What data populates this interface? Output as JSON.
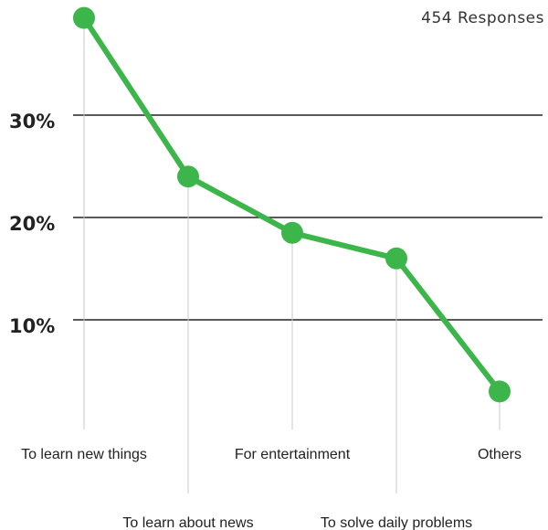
{
  "header": {
    "responses": "454 Responses"
  },
  "chart_data": {
    "type": "line",
    "categories": [
      "To learn new things",
      "To learn about news",
      "For entertainment",
      "To solve daily problems",
      "Others"
    ],
    "series": [
      {
        "values": [
          39.5,
          24,
          18.5,
          16,
          3
        ],
        "color": "#3cb54a"
      }
    ],
    "y_ticks": [
      {
        "value": 10,
        "label": "10%"
      },
      {
        "value": 20,
        "label": "20%"
      },
      {
        "value": 30,
        "label": "30%"
      }
    ],
    "ylim": [
      0,
      40
    ],
    "grid": "horizontal",
    "xlabel": "",
    "ylabel": "",
    "colors": {
      "line": "#3cb54a",
      "gridline": "#222222",
      "stem": "#c8c8c8"
    }
  }
}
